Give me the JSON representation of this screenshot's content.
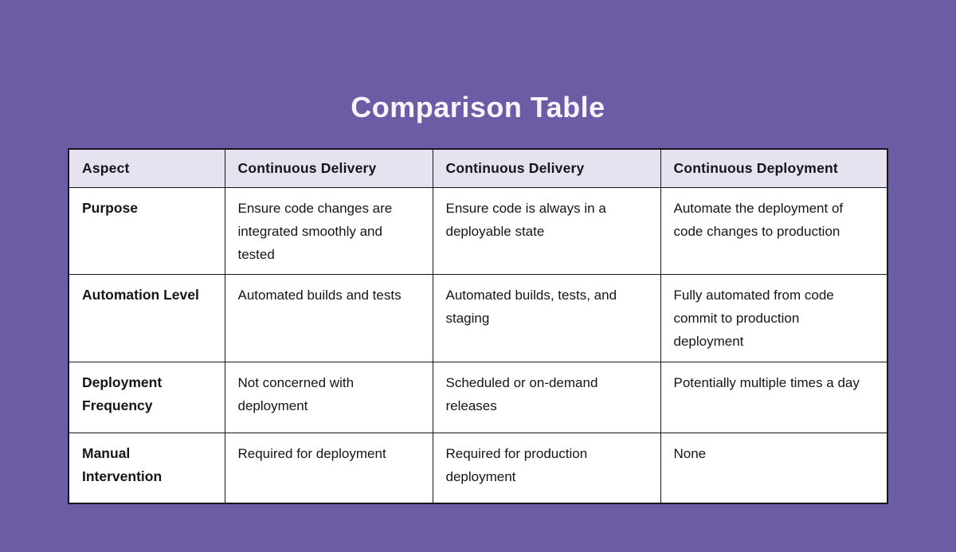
{
  "page": {
    "title": "Comparison Table",
    "background_color": "#6C5CA5",
    "title_color": "#F7F5FB",
    "header_row_color": "#E6E2F0",
    "border_color": "#17141F"
  },
  "table": {
    "columns": [
      "Aspect",
      "Continuous Delivery",
      "Continuous Delivery",
      "Continuous Deployment"
    ],
    "rows": [
      {
        "aspect": "Purpose",
        "cells": [
          "Ensure code changes are integrated smoothly and tested",
          "Ensure code is always in a deployable state",
          "Automate the deployment of code changes to production"
        ]
      },
      {
        "aspect": "Automation Level",
        "cells": [
          "Automated builds and tests",
          "Automated builds, tests, and staging",
          "Fully automated from code commit to production deployment"
        ]
      },
      {
        "aspect": "Deployment Frequency",
        "cells": [
          "Not concerned with deployment",
          "Scheduled or on-demand releases",
          "Potentially multiple times a day"
        ]
      },
      {
        "aspect": "Manual Intervention",
        "cells": [
          "Required for deployment",
          "Required for production deployment",
          "None"
        ]
      }
    ]
  }
}
